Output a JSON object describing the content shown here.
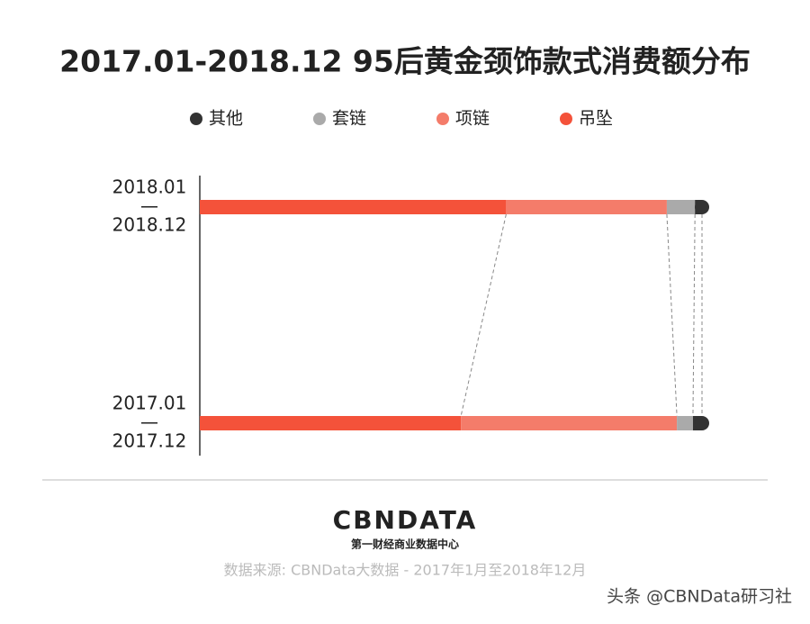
{
  "chart_data": {
    "type": "stacked-bar",
    "title": "2017.01-2018.12 95后黄金颈饰款式消费额分布",
    "categories": [
      [
        "2018.01",
        "—",
        "2018.12"
      ],
      [
        "2017.01",
        "—",
        "2017.12"
      ]
    ],
    "series": [
      {
        "name": "吊坠",
        "color": "#f4523a",
        "values": [
          61,
          52
        ]
      },
      {
        "name": "项链",
        "color": "#f47c6a",
        "values": [
          32,
          43
        ]
      },
      {
        "name": "套链",
        "color": "#aaaaaa",
        "values": [
          5.6,
          3.2
        ]
      },
      {
        "name": "其他",
        "color": "#333333",
        "values": [
          1.4,
          1.8
        ]
      }
    ],
    "xlim": [
      0,
      100
    ]
  },
  "footer": {
    "logo": "CBNDATA",
    "logo_subtitle": "第一财经商业数据中心",
    "source": "数据来源: CBNData大数据 - 2017年1月至2018年12月",
    "watermark": "头条 @CBNData研习社"
  }
}
